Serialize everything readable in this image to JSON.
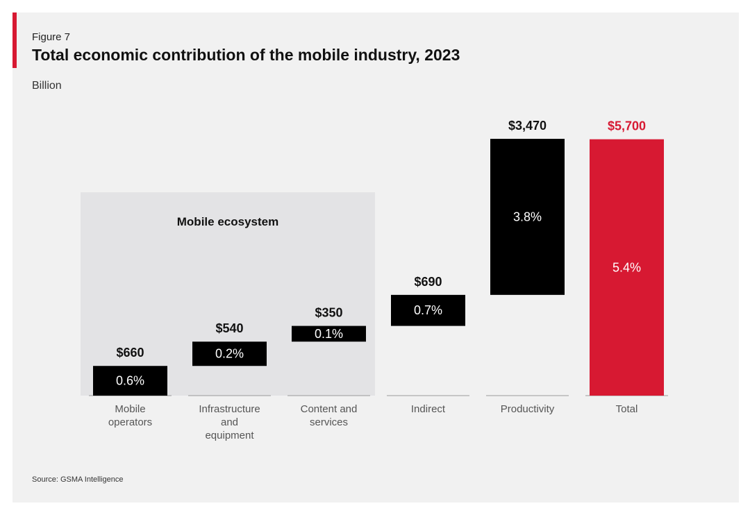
{
  "figure_label": "Figure 7",
  "title": "Total economic contribution of the mobile industry, 2023",
  "unit": "Billion",
  "source": "Source: GSMA Intelligence",
  "colors": {
    "accent": "#d71932",
    "bar": "#000000",
    "total": "#d71932",
    "ecosystem_bg": "#e3e3e5"
  },
  "chart_data": {
    "type": "bar",
    "subtype": "waterfall",
    "group_label": "Mobile ecosystem",
    "group_categories": [
      "Mobile operators",
      "Infrastructure and equipment",
      "Content and services"
    ],
    "categories": [
      "Mobile operators",
      "Infrastructure and equipment",
      "Content and services",
      "Indirect",
      "Productivity",
      "Total"
    ],
    "category_lines": [
      [
        "Mobile",
        "operators"
      ],
      [
        "Infrastructure",
        "and",
        "equipment"
      ],
      [
        "Content and",
        "services"
      ],
      [
        "Indirect"
      ],
      [
        "Productivity"
      ],
      [
        "Total"
      ]
    ],
    "values": [
      660,
      540,
      350,
      690,
      3470,
      5700
    ],
    "value_labels": [
      "$660",
      "$540",
      "$350",
      "$690",
      "$3,470",
      "$5,700"
    ],
    "gdp_share_labels": [
      "0.6%",
      "0.2%",
      "0.1%",
      "0.7%",
      "3.8%",
      "5.4%"
    ],
    "total_index": 5,
    "ylim": [
      0,
      5710
    ]
  }
}
